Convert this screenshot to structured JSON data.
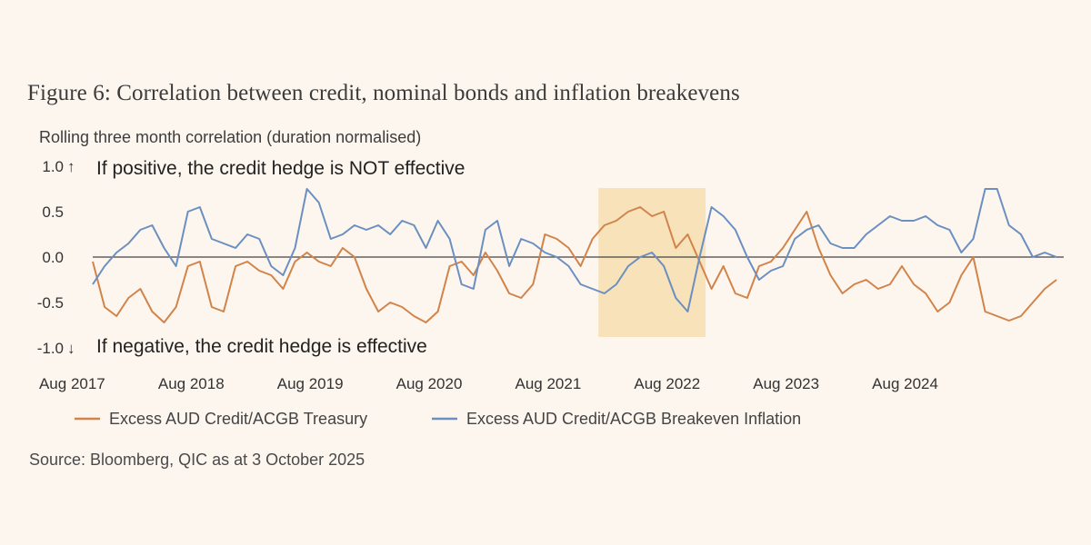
{
  "figure": {
    "title": "Figure 6: Correlation between credit, nominal bonds and inflation breakevens",
    "subtitle": "Rolling three month correlation (duration normalised)",
    "source": "Source: Bloomberg, QIC as at 3 October 2025"
  },
  "colors": {
    "treasury": "#d2834a",
    "breakeven": "#6b8fc1",
    "highlight": "#f6deb0",
    "zero_line": "#444444"
  },
  "chart_data": {
    "type": "line",
    "title": "Figure 6: Correlation between credit, nominal bonds and inflation breakevens",
    "ylabel": "Rolling three month correlation (duration normalised)",
    "xlabel": "",
    "ylim": [
      -1.0,
      1.0
    ],
    "xlim": [
      2017.6,
      2025.76
    ],
    "yticks": [
      1.0,
      0.5,
      0.0,
      -0.5,
      -1.0
    ],
    "ytick_labels": [
      "1.0",
      "0.5",
      "0.0",
      "-0.5",
      "-1.0"
    ],
    "xticks": [
      2017.58,
      2018.58,
      2019.58,
      2020.58,
      2021.58,
      2022.58,
      2023.58,
      2024.58
    ],
    "xtick_labels": [
      "Aug 2017",
      "Aug 2018",
      "Aug 2019",
      "Aug 2020",
      "Aug 2021",
      "Aug 2022",
      "Aug 2023",
      "Aug 2024"
    ],
    "annotations": {
      "top": "If positive, the credit hedge is NOT effective",
      "bottom": "If negative, the credit hedge is effective"
    },
    "highlight_range": [
      2021.85,
      2022.75
    ],
    "legend_position": "bottom",
    "series": [
      {
        "name": "Excess AUD Credit/ACGB Treasury",
        "x": [
          2017.6,
          2017.7,
          2017.8,
          2017.9,
          2018.0,
          2018.1,
          2018.2,
          2018.3,
          2018.4,
          2018.5,
          2018.6,
          2018.7,
          2018.8,
          2018.9,
          2019.0,
          2019.1,
          2019.2,
          2019.3,
          2019.4,
          2019.5,
          2019.6,
          2019.7,
          2019.8,
          2019.9,
          2020.0,
          2020.1,
          2020.2,
          2020.3,
          2020.4,
          2020.5,
          2020.6,
          2020.7,
          2020.8,
          2020.9,
          2021.0,
          2021.1,
          2021.2,
          2021.3,
          2021.4,
          2021.5,
          2021.6,
          2021.7,
          2021.8,
          2021.9,
          2022.0,
          2022.1,
          2022.2,
          2022.3,
          2022.4,
          2022.5,
          2022.6,
          2022.7,
          2022.8,
          2022.9,
          2023.0,
          2023.1,
          2023.2,
          2023.3,
          2023.4,
          2023.5,
          2023.6,
          2023.7,
          2023.8,
          2023.9,
          2024.0,
          2024.1,
          2024.2,
          2024.3,
          2024.4,
          2024.5,
          2024.6,
          2024.7,
          2024.8,
          2024.9,
          2025.0,
          2025.1,
          2025.2,
          2025.3,
          2025.4,
          2025.5,
          2025.6,
          2025.7
        ],
        "values": [
          -0.05,
          -0.55,
          -0.65,
          -0.45,
          -0.35,
          -0.6,
          -0.72,
          -0.55,
          -0.1,
          -0.05,
          -0.55,
          -0.6,
          -0.1,
          -0.05,
          -0.15,
          -0.2,
          -0.35,
          -0.05,
          0.05,
          -0.05,
          -0.1,
          0.1,
          0.0,
          -0.35,
          -0.6,
          -0.5,
          -0.55,
          -0.65,
          -0.72,
          -0.6,
          -0.1,
          -0.05,
          -0.2,
          0.05,
          -0.15,
          -0.4,
          -0.45,
          -0.3,
          0.25,
          0.2,
          0.1,
          -0.1,
          0.2,
          0.35,
          0.4,
          0.5,
          0.55,
          0.45,
          0.5,
          0.1,
          0.25,
          -0.05,
          -0.35,
          -0.1,
          -0.4,
          -0.45,
          -0.1,
          -0.05,
          0.1,
          0.3,
          0.5,
          0.1,
          -0.2,
          -0.4,
          -0.3,
          -0.25,
          -0.35,
          -0.3,
          -0.1,
          -0.3,
          -0.4,
          -0.6,
          -0.5,
          -0.2,
          0.0,
          -0.6,
          -0.65,
          -0.7,
          -0.65,
          -0.5,
          -0.35,
          -0.25
        ]
      },
      {
        "name": "Excess AUD Credit/ACGB Breakeven Inflation",
        "x": [
          2017.6,
          2017.7,
          2017.8,
          2017.9,
          2018.0,
          2018.1,
          2018.2,
          2018.3,
          2018.4,
          2018.5,
          2018.6,
          2018.7,
          2018.8,
          2018.9,
          2019.0,
          2019.1,
          2019.2,
          2019.3,
          2019.4,
          2019.5,
          2019.6,
          2019.7,
          2019.8,
          2019.9,
          2020.0,
          2020.1,
          2020.2,
          2020.3,
          2020.4,
          2020.5,
          2020.6,
          2020.7,
          2020.8,
          2020.9,
          2021.0,
          2021.1,
          2021.2,
          2021.3,
          2021.4,
          2021.5,
          2021.6,
          2021.7,
          2021.8,
          2021.9,
          2022.0,
          2022.1,
          2022.2,
          2022.3,
          2022.4,
          2022.5,
          2022.6,
          2022.7,
          2022.8,
          2022.9,
          2023.0,
          2023.1,
          2023.2,
          2023.3,
          2023.4,
          2023.5,
          2023.6,
          2023.7,
          2023.8,
          2023.9,
          2024.0,
          2024.1,
          2024.2,
          2024.3,
          2024.4,
          2024.5,
          2024.6,
          2024.7,
          2024.8,
          2024.9,
          2025.0,
          2025.1,
          2025.2,
          2025.3,
          2025.4,
          2025.5,
          2025.6,
          2025.7
        ],
        "values": [
          -0.3,
          -0.1,
          0.05,
          0.15,
          0.3,
          0.35,
          0.1,
          -0.1,
          0.5,
          0.55,
          0.2,
          0.15,
          0.1,
          0.25,
          0.2,
          -0.1,
          -0.2,
          0.1,
          0.75,
          0.6,
          0.2,
          0.25,
          0.35,
          0.3,
          0.35,
          0.25,
          0.4,
          0.35,
          0.1,
          0.4,
          0.2,
          -0.3,
          -0.35,
          0.3,
          0.4,
          -0.1,
          0.2,
          0.15,
          0.05,
          0.0,
          -0.1,
          -0.3,
          -0.35,
          -0.4,
          -0.3,
          -0.1,
          0.0,
          0.05,
          -0.1,
          -0.45,
          -0.6,
          0.0,
          0.55,
          0.45,
          0.3,
          0.0,
          -0.25,
          -0.15,
          -0.1,
          0.2,
          0.3,
          0.35,
          0.15,
          0.1,
          0.1,
          0.25,
          0.35,
          0.45,
          0.4,
          0.4,
          0.45,
          0.35,
          0.3,
          0.05,
          0.2,
          0.75,
          0.75,
          0.35,
          0.25,
          0.0,
          0.05,
          0.0
        ]
      }
    ]
  }
}
